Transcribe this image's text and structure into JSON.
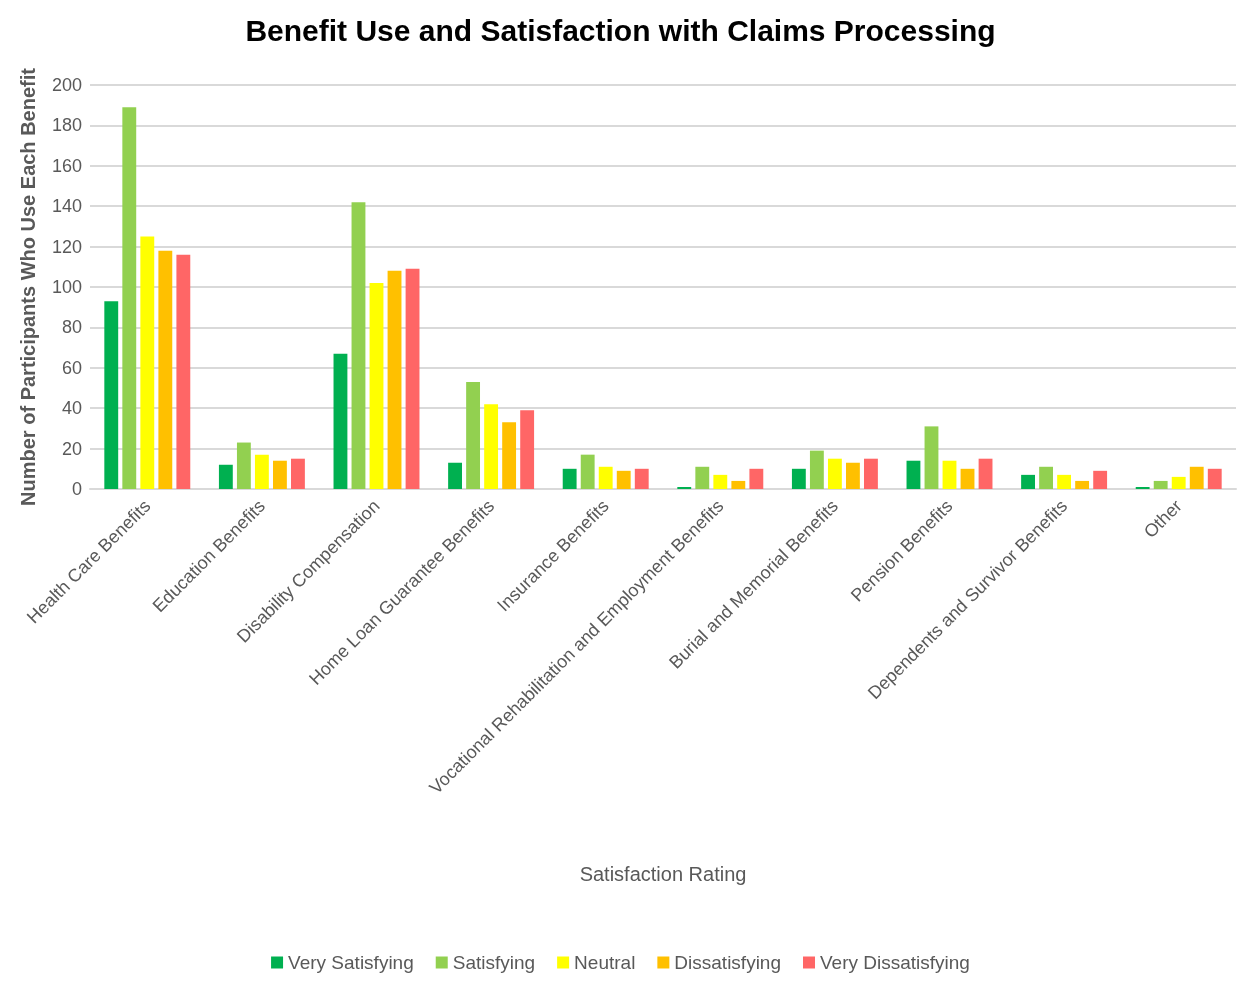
{
  "chart_data": {
    "type": "bar",
    "title": "Benefit Use and Satisfaction with Claims Processing",
    "xlabel": "Satisfaction Rating",
    "ylabel": "Number of Participants Who Use Each Benefit",
    "categories": [
      "Health Care Benefits",
      "Education Benefits",
      "Disability Compensation",
      "Home Loan Guarantee Benefits",
      "Insurance Benefits",
      "Vocational Rehabilitation and Employment Benefits",
      "Burial and Memorial Benefits",
      "Pension Benefits",
      "Dependents and Survivor Benefits",
      "Other"
    ],
    "series": [
      {
        "name": "Very Satisfying",
        "color": "#00b050",
        "values": [
          93,
          12,
          67,
          13,
          10,
          1,
          10,
          14,
          7,
          1
        ]
      },
      {
        "name": "Satisfying",
        "color": "#92d050",
        "values": [
          189,
          23,
          142,
          53,
          17,
          11,
          19,
          31,
          11,
          4
        ]
      },
      {
        "name": "Neutral",
        "color": "#ffff00",
        "values": [
          125,
          17,
          102,
          42,
          11,
          7,
          15,
          14,
          7,
          6
        ]
      },
      {
        "name": "Dissatisfying",
        "color": "#ffc000",
        "values": [
          118,
          14,
          108,
          33,
          9,
          4,
          13,
          10,
          4,
          11
        ]
      },
      {
        "name": "Very Dissatisfying",
        "color": "#ff6666",
        "values": [
          116,
          15,
          109,
          39,
          10,
          10,
          15,
          15,
          9,
          10
        ]
      }
    ],
    "ylim": [
      0,
      200
    ],
    "yticks": [
      0,
      20,
      40,
      60,
      80,
      100,
      120,
      140,
      160,
      180,
      200
    ],
    "grid": "y",
    "legend": "bottom"
  }
}
